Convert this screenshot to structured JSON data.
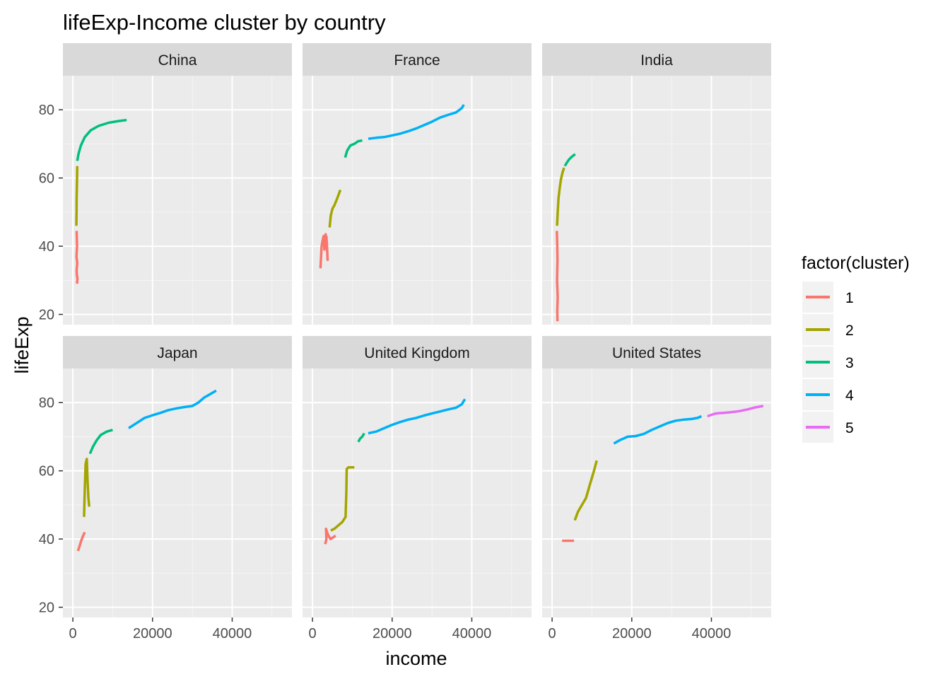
{
  "chart_data": {
    "type": "line",
    "title": "lifeExp-Income cluster by country",
    "xlabel": "income",
    "ylabel": "lifeExp",
    "xlim": [
      -2500,
      55000
    ],
    "ylim": [
      17,
      90
    ],
    "x_ticks": [
      0,
      20000,
      40000
    ],
    "x_tick_labels": [
      "0",
      "20000",
      "40000"
    ],
    "y_ticks": [
      20,
      40,
      60,
      80
    ],
    "y_tick_labels": [
      "20",
      "40",
      "60",
      "80"
    ],
    "grid": true,
    "facet_layout": "2 rows x 3 columns",
    "legend": {
      "title": "factor(cluster)",
      "placement": "right",
      "entries": [
        {
          "label": "1",
          "color": "#F8766D"
        },
        {
          "label": "2",
          "color": "#A3A500"
        },
        {
          "label": "3",
          "color": "#00BF7D"
        },
        {
          "label": "4",
          "color": "#00B0F6"
        },
        {
          "label": "5",
          "color": "#E76BF3"
        }
      ]
    },
    "panels": [
      {
        "name": "China",
        "series": [
          {
            "cluster": "1",
            "x": [
              950,
              1050,
              900,
              1100,
              950,
              1000,
              1150,
              1050,
              1100
            ],
            "y": [
              44.5,
              40,
              37,
              35,
              33,
              31.5,
              30.5,
              29.5,
              29
            ]
          },
          {
            "cluster": "2",
            "x": [
              880,
              920,
              950,
              1000,
              1050,
              1100
            ],
            "y": [
              46,
              50,
              54,
              57,
              60,
              63.5
            ]
          },
          {
            "cluster": "3",
            "x": [
              1100,
              1400,
              2000,
              3000,
              4500,
              6500,
              9000,
              11500,
              13500
            ],
            "y": [
              65,
              67,
              69.5,
              72,
              74,
              75.3,
              76.2,
              76.7,
              77
            ]
          }
        ]
      },
      {
        "name": "France",
        "series": [
          {
            "cluster": "1",
            "x": [
              2000,
              2300,
              2600,
              2800,
              3000,
              3300,
              3600,
              3800,
              3500
            ],
            "y": [
              33.5,
              40,
              42,
              43,
              39,
              43.5,
              41,
              36,
              43
            ]
          },
          {
            "cluster": "2",
            "x": [
              4300,
              4600,
              5000,
              5500,
              6200,
              7000
            ],
            "y": [
              45.5,
              49,
              51,
              52,
              54,
              56.5
            ]
          },
          {
            "cluster": "3",
            "x": [
              8200,
              8700,
              9500,
              10500,
              11500,
              12500
            ],
            "y": [
              66,
              68,
              69.5,
              70,
              70.8,
              71
            ]
          },
          {
            "cluster": "4",
            "x": [
              14000,
              16000,
              18000,
              20000,
              22000,
              24000,
              26000,
              28000,
              30000,
              32000,
              34000,
              36000,
              37500,
              38000
            ],
            "y": [
              71.5,
              71.8,
              72,
              72.5,
              73,
              73.7,
              74.5,
              75.5,
              76.5,
              77.7,
              78.5,
              79.2,
              80.5,
              81.5
            ]
          }
        ]
      },
      {
        "name": "India",
        "series": [
          {
            "cluster": "1",
            "x": [
              1200,
              1300,
              1350,
              1250,
              1400,
              1300,
              1350
            ],
            "y": [
              44.5,
              40,
              36,
              30,
              25,
              21,
              18
            ]
          },
          {
            "cluster": "2",
            "x": [
              1250,
              1400,
              1600,
              1900,
              2200,
              2600,
              3000
            ],
            "y": [
              46,
              50,
              54,
              57,
              59.5,
              61.5,
              63
            ]
          },
          {
            "cluster": "3",
            "x": [
              3200,
              3700,
              4300,
              5000,
              5800
            ],
            "y": [
              63.5,
              64.5,
              65.5,
              66.3,
              67
            ]
          }
        ]
      },
      {
        "name": "Japan",
        "series": [
          {
            "cluster": "1",
            "x": [
              1300,
              1700,
              2100,
              2600,
              3000
            ],
            "y": [
              36.5,
              38,
              39.5,
              41,
              42
            ]
          },
          {
            "cluster": "2",
            "x": [
              2800,
              3000,
              3200,
              3500,
              3700,
              3900,
              4100
            ],
            "y": [
              46.5,
              55,
              62,
              63.5,
              57,
              52,
              49.5
            ]
          },
          {
            "cluster": "3",
            "x": [
              4300,
              5000,
              6000,
              7000,
              8500,
              10000
            ],
            "y": [
              65,
              67,
              69,
              70.5,
              71.5,
              72
            ]
          },
          {
            "cluster": "4",
            "x": [
              14000,
              16000,
              18000,
              20000,
              22000,
              24000,
              26000,
              28000,
              30000,
              31500,
              33000,
              34500,
              36000
            ],
            "y": [
              72.5,
              74,
              75.5,
              76.3,
              77,
              77.8,
              78.3,
              78.7,
              79,
              80,
              81.5,
              82.5,
              83.5
            ]
          }
        ]
      },
      {
        "name": "United Kingdom",
        "series": [
          {
            "cluster": "1",
            "x": [
              3200,
              3500,
              3400,
              3800,
              4500,
              5200,
              5800
            ],
            "y": [
              38.5,
              40,
              43,
              41.5,
              40,
              40.5,
              41
            ]
          },
          {
            "cluster": "2",
            "x": [
              4600,
              5500,
              6500,
              7500,
              8300,
              8500,
              8600,
              9000,
              10000,
              10500
            ],
            "y": [
              42.5,
              43,
              44,
              45,
              46.5,
              54,
              60.5,
              61,
              61,
              61
            ]
          },
          {
            "cluster": "3",
            "x": [
              11500,
              12000,
              12500,
              13000
            ],
            "y": [
              68.5,
              69.5,
              70,
              71
            ]
          },
          {
            "cluster": "4",
            "x": [
              14000,
              16000,
              18000,
              20000,
              22000,
              24000,
              26000,
              28000,
              30000,
              32000,
              34000,
              36000,
              37500,
              38000,
              38300
            ],
            "y": [
              71,
              71.5,
              72.5,
              73.5,
              74.3,
              75,
              75.5,
              76.2,
              76.8,
              77.4,
              78,
              78.5,
              79.5,
              80.5,
              81
            ]
          }
        ]
      },
      {
        "name": "United States",
        "series": [
          {
            "cluster": "1",
            "x": [
              2500,
              4000,
              5500
            ],
            "y": [
              39.5,
              39.5,
              39.5
            ]
          },
          {
            "cluster": "2",
            "x": [
              5700,
              6500,
              7500,
              8500,
              9500,
              10500,
              11200
            ],
            "y": [
              45.5,
              48,
              50,
              52,
              56,
              60,
              63
            ]
          },
          {
            "cluster": "4",
            "x": [
              15500,
              17000,
              19000,
              21000,
              23000,
              25000,
              27000,
              29000,
              31000,
              33000,
              35000,
              36500,
              37500
            ],
            "y": [
              68,
              69,
              70,
              70.2,
              70.8,
              72,
              73,
              74,
              74.7,
              75,
              75.2,
              75.5,
              76
            ]
          },
          {
            "cluster": "5",
            "x": [
              39000,
              41000,
              43000,
              45000,
              47000,
              49000,
              51000,
              53000
            ],
            "y": [
              76,
              76.8,
              77,
              77.2,
              77.5,
              78,
              78.6,
              79
            ]
          }
        ]
      }
    ]
  }
}
